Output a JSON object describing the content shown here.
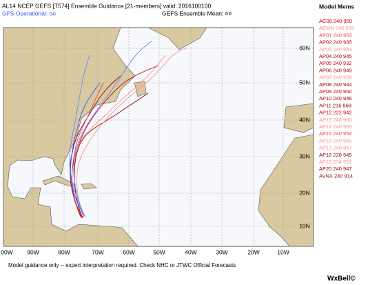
{
  "header": {
    "title": "AL14 NCEP GEFS [T574] Ensemble Guidance [21-members] valid: 2016100100",
    "operational": "GFS Operational: oo",
    "mean": "GEFS Ensemble Mean: ¤¤"
  },
  "legend": {
    "title": "Model Mems",
    "members": [
      {
        "label": "AC00 240 950",
        "color": "#cc0000"
      },
      {
        "label": "AEMN 240 959",
        "color": "#ff9090"
      },
      {
        "label": "AP01 240 953",
        "color": "#e84848"
      },
      {
        "label": "AP02 240 935",
        "color": "#cc0000"
      },
      {
        "label": "AP03 240 953",
        "color": "#ff9090"
      },
      {
        "label": "AP04 240 945",
        "color": "#990000"
      },
      {
        "label": "AP05 240 932",
        "color": "#cc0000"
      },
      {
        "label": "AP06 240 949",
        "color": "#990000"
      },
      {
        "label": "AP07 240 958",
        "color": "#ff9090"
      },
      {
        "label": "AP08 240 944",
        "color": "#990000"
      },
      {
        "label": "AP09 240 950",
        "color": "#cc0000"
      },
      {
        "label": "AP10 240 946",
        "color": "#990000"
      },
      {
        "label": "AP11 216 968",
        "color": "#990000"
      },
      {
        "label": "AP12 222 942",
        "color": "#cc0000"
      },
      {
        "label": "AP13 240 960",
        "color": "#ff9090"
      },
      {
        "label": "AP14 240 955",
        "color": "#ff9090"
      },
      {
        "label": "AP15 240 954",
        "color": "#e84848"
      },
      {
        "label": "AP16 240 960",
        "color": "#ff9090"
      },
      {
        "label": "AP17 240 957",
        "color": "#ff9090"
      },
      {
        "label": "AP18 228 945",
        "color": "#990000"
      },
      {
        "label": "AP19 234 951",
        "color": "#ff9090"
      },
      {
        "label": "AP20 240 947",
        "color": "#990000"
      },
      {
        "label": "AVNX 240 914",
        "color": "#990000"
      }
    ]
  },
  "map": {
    "lat_labels": [
      "60N",
      "50N",
      "40N",
      "30N",
      "20N",
      "10N"
    ],
    "lon_labels": [
      "00W",
      "90W",
      "80W",
      "70W",
      "60W",
      "50W",
      "40W",
      "30W",
      "20W",
      "10W"
    ]
  },
  "footer": {
    "note": "Model guidance only -- expert interpretation required.  Check NHC or JTWC Official Forecasts",
    "logo": "WxBell©"
  }
}
